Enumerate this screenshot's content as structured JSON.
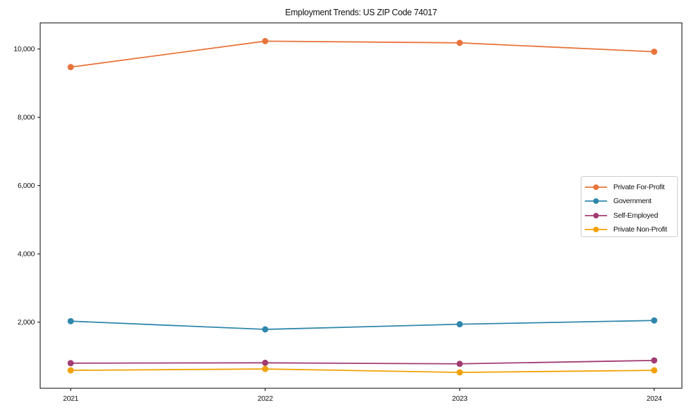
{
  "chart_data": {
    "type": "line",
    "title": "Employment Trends: US ZIP Code 74017",
    "x": [
      2021,
      2022,
      2023,
      2024
    ],
    "xtick_labels": [
      "2021",
      "2022",
      "2023",
      "2024"
    ],
    "series": [
      {
        "name": "Private For-Profit",
        "color": "#E8743B",
        "values": [
          9470,
          10230,
          10180,
          9920
        ]
      },
      {
        "name": "Government",
        "color": "#2E86AB",
        "values": [
          2030,
          1790,
          1940,
          2050
        ]
      },
      {
        "name": "Self-Employed",
        "color": "#A23B72",
        "values": [
          800,
          810,
          780,
          880
        ]
      },
      {
        "name": "Private Non-Profit",
        "color": "#F2A104",
        "values": [
          590,
          630,
          530,
          590
        ]
      }
    ],
    "yticks": [
      2000,
      4000,
      6000,
      8000,
      10000
    ],
    "ytick_labels": [
      "2,000",
      "4,000",
      "6,000",
      "8,000",
      "10,000"
    ],
    "ylim": [
      65,
      10765
    ],
    "grid": false,
    "legend_position": "center right",
    "axis_color": "#000000",
    "text_color": "#111111"
  }
}
